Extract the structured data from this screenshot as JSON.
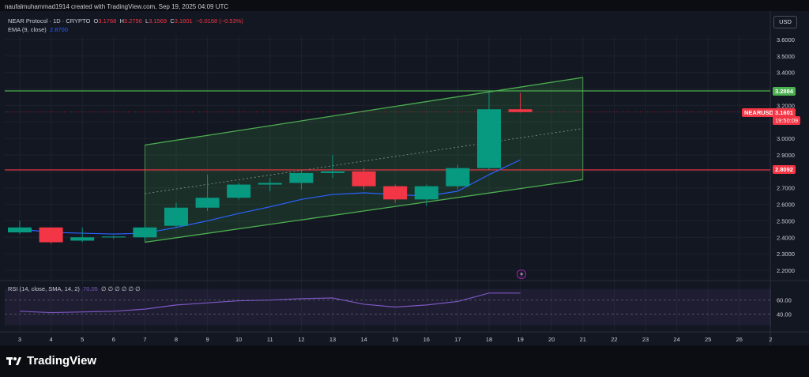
{
  "header": {
    "credit": "naufalmuhammad1914 created with TradingView.com, Sep 19, 2025 04:09 UTC",
    "symbol": "NEAR Protocol · 1D · CRYPTO",
    "ohlc": {
      "o_label": "O",
      "o": "3.1768",
      "h_label": "H",
      "h": "3.2756",
      "l_label": "L",
      "l": "3.1569",
      "c_label": "C",
      "c": "3.1601",
      "change": "−0.0168 (−0.53%)"
    },
    "ema_label": "EMA (9, close)",
    "ema_value": "2.8700",
    "currency": "USD"
  },
  "price_tags": {
    "upper_level": "3.2884",
    "symbol_tag": "NEARUSD",
    "last_price": "3.1601",
    "countdown": "19:50:09",
    "lower_level": "2.8092"
  },
  "rsi": {
    "legend": "RSI (14, close, SMA, 14, 2)",
    "value": "70.05",
    "placeholders": "∅ ∅ ∅ ∅ ∅ ∅",
    "levels": [
      "60.00",
      "40.00"
    ],
    "values": [
      44,
      42,
      43,
      44,
      47,
      53,
      56,
      59,
      60,
      62,
      63,
      54,
      50,
      53,
      58,
      70,
      70
    ]
  },
  "footer": {
    "brand": "TradingView"
  },
  "colors": {
    "up": "#089981",
    "down": "#f23645",
    "ema": "#2962ff",
    "channel": "#4caf50",
    "rsi": "#7e57c2"
  },
  "chart_data": {
    "type": "candlestick",
    "title": "NEAR Protocol · 1D · CRYPTO",
    "x_ticks": [
      "3",
      "4",
      "5",
      "6",
      "7",
      "8",
      "9",
      "10",
      "11",
      "12",
      "13",
      "14",
      "15",
      "16",
      "17",
      "18",
      "19",
      "20",
      "21",
      "22",
      "23",
      "24",
      "25",
      "26",
      "2"
    ],
    "y_ticks": [
      "3.6000",
      "3.5000",
      "3.4000",
      "3.3000",
      "3.2000",
      "3.1000",
      "3.0000",
      "2.9000",
      "2.8000",
      "2.7000",
      "2.6000",
      "2.5000",
      "2.4000",
      "2.3000",
      "2.2000"
    ],
    "ylim": [
      2.15,
      3.7
    ],
    "candles": [
      {
        "x": "3",
        "o": 2.43,
        "h": 2.5,
        "l": 2.42,
        "c": 2.46
      },
      {
        "x": "4",
        "o": 2.46,
        "h": 2.46,
        "l": 2.36,
        "c": 2.37
      },
      {
        "x": "5",
        "o": 2.38,
        "h": 2.46,
        "l": 2.37,
        "c": 2.4
      },
      {
        "x": "6",
        "o": 2.4,
        "h": 2.41,
        "l": 2.39,
        "c": 2.405
      },
      {
        "x": "7",
        "o": 2.4,
        "h": 2.47,
        "l": 2.38,
        "c": 2.46
      },
      {
        "x": "8",
        "o": 2.47,
        "h": 2.61,
        "l": 2.46,
        "c": 2.58
      },
      {
        "x": "9",
        "o": 2.58,
        "h": 2.78,
        "l": 2.56,
        "c": 2.64
      },
      {
        "x": "10",
        "o": 2.64,
        "h": 2.73,
        "l": 2.63,
        "c": 2.72
      },
      {
        "x": "11",
        "o": 2.72,
        "h": 2.76,
        "l": 2.68,
        "c": 2.73
      },
      {
        "x": "12",
        "o": 2.73,
        "h": 2.81,
        "l": 2.69,
        "c": 2.79
      },
      {
        "x": "13",
        "o": 2.79,
        "h": 2.9,
        "l": 2.76,
        "c": 2.8
      },
      {
        "x": "14",
        "o": 2.8,
        "h": 2.82,
        "l": 2.69,
        "c": 2.71
      },
      {
        "x": "15",
        "o": 2.71,
        "h": 2.72,
        "l": 2.61,
        "c": 2.63
      },
      {
        "x": "16",
        "o": 2.63,
        "h": 2.72,
        "l": 2.59,
        "c": 2.71
      },
      {
        "x": "17",
        "o": 2.71,
        "h": 2.84,
        "l": 2.69,
        "c": 2.82
      },
      {
        "x": "18",
        "o": 2.82,
        "h": 3.28,
        "l": 2.81,
        "c": 3.177
      },
      {
        "x": "19",
        "o": 3.177,
        "h": 3.276,
        "l": 3.157,
        "c": 3.16
      }
    ],
    "ema": [
      {
        "x": "3",
        "y": 2.45
      },
      {
        "x": "4",
        "y": 2.43
      },
      {
        "x": "5",
        "y": 2.425
      },
      {
        "x": "6",
        "y": 2.42
      },
      {
        "x": "7",
        "y": 2.425
      },
      {
        "x": "8",
        "y": 2.46
      },
      {
        "x": "9",
        "y": 2.5
      },
      {
        "x": "10",
        "y": 2.545
      },
      {
        "x": "11",
        "y": 2.585
      },
      {
        "x": "12",
        "y": 2.63
      },
      {
        "x": "13",
        "y": 2.66
      },
      {
        "x": "14",
        "y": 2.67
      },
      {
        "x": "15",
        "y": 2.66
      },
      {
        "x": "16",
        "y": 2.65
      },
      {
        "x": "17",
        "y": 2.68
      },
      {
        "x": "18",
        "y": 2.78
      },
      {
        "x": "19",
        "y": 2.87
      }
    ],
    "horizontal_levels": [
      3.2884,
      2.8092,
      3.1601
    ],
    "channel": {
      "upper": [
        {
          "x": "7",
          "y": 2.96
        },
        {
          "x": "21",
          "y": 3.37
        }
      ],
      "lower": [
        {
          "x": "7",
          "y": 2.37
        },
        {
          "x": "21",
          "y": 2.75
        }
      ]
    },
    "grid": true,
    "legend_position": "top-left"
  }
}
